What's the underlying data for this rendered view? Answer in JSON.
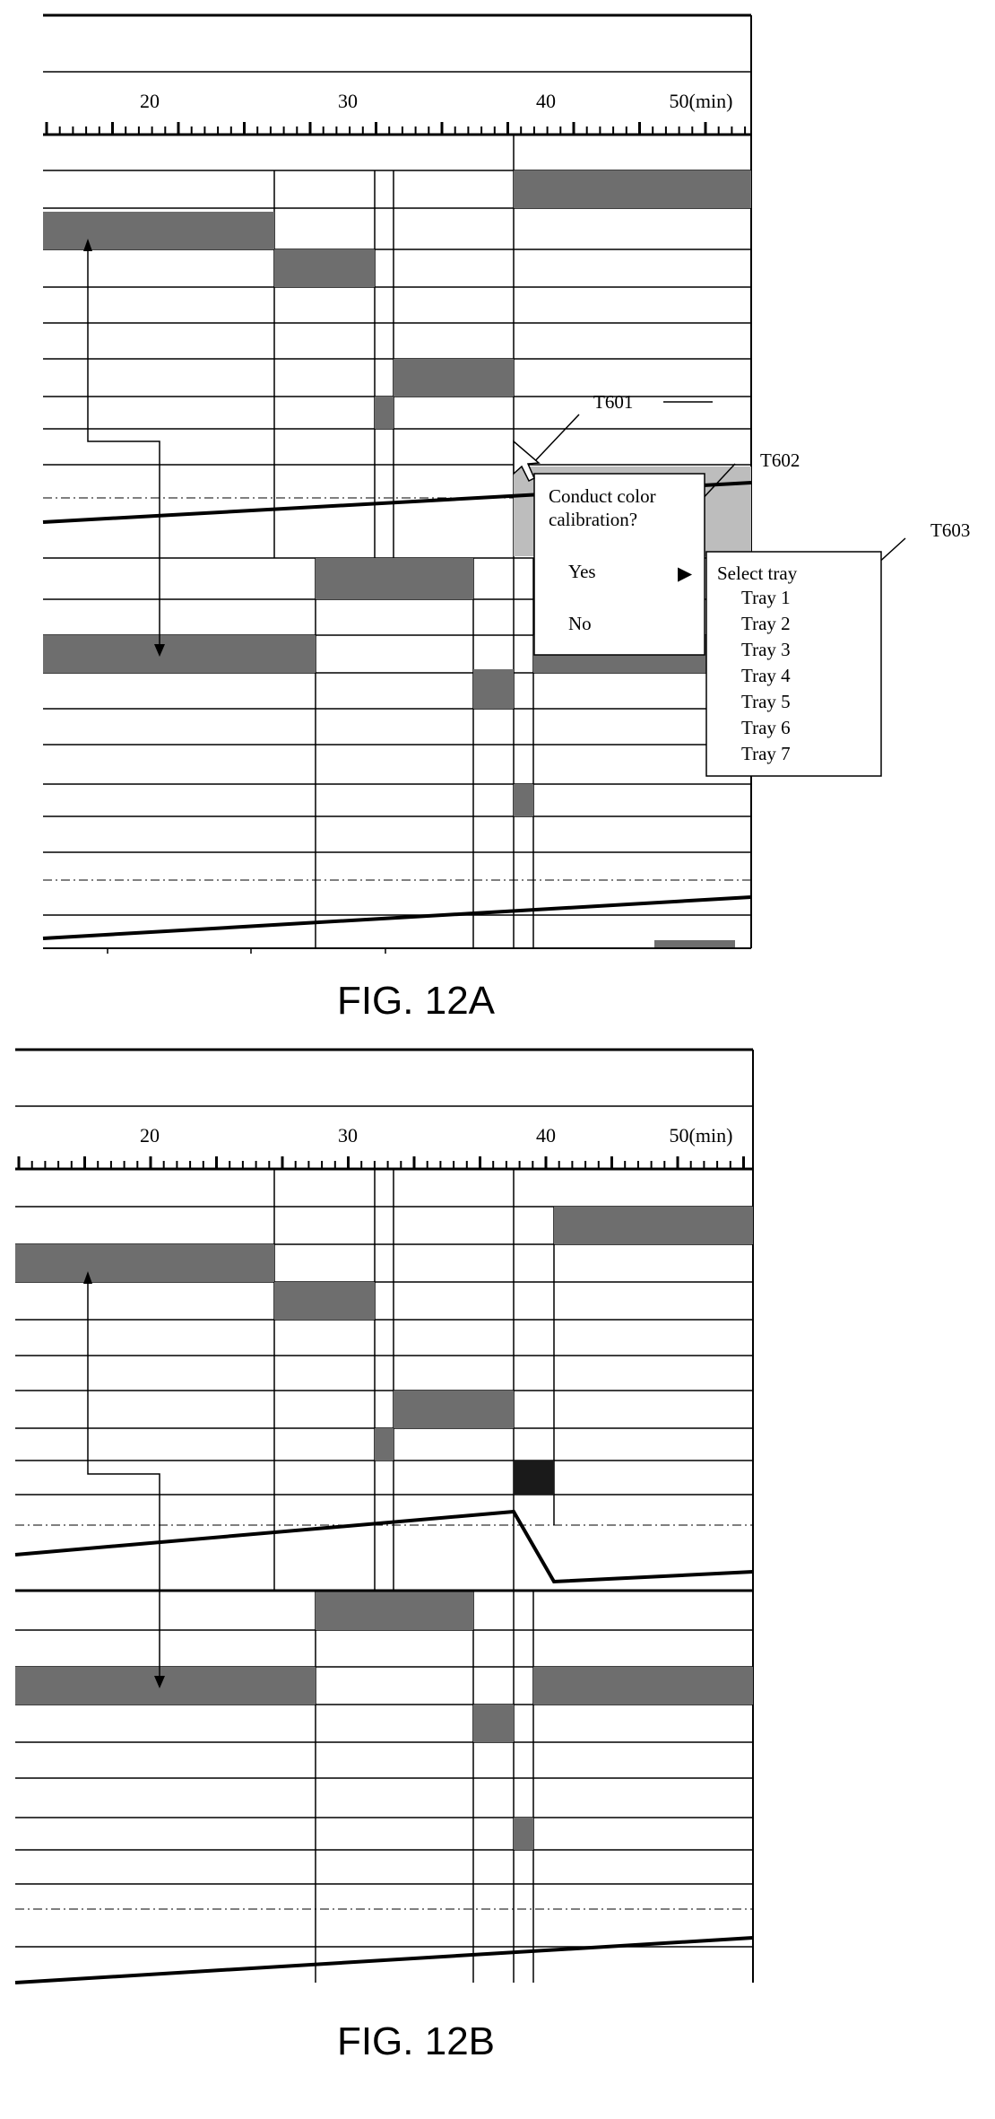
{
  "colors": {
    "bar": "#6e6e6e",
    "bar_dark": "#1a1a1a",
    "highlight": "#bdbdbd",
    "line": "#000000"
  },
  "fig_a": {
    "axis": {
      "ticks": [
        "20",
        "30",
        "40",
        "50(min)"
      ]
    },
    "callouts": {
      "t601": "T601",
      "t602": "T602",
      "t603": "T603"
    },
    "dialog": {
      "question_line1": "Conduct color",
      "question_line2": "calibration?",
      "yes_label": "Yes",
      "no_label": "No",
      "submenu_arrow": "▶"
    },
    "tray_menu": {
      "header": "Select tray",
      "items": [
        "Tray 1",
        "Tray 2",
        "Tray 3",
        "Tray 4",
        "Tray 5",
        "Tray 6",
        "Tray 7"
      ]
    },
    "caption": "FIG. 12A"
  },
  "fig_b": {
    "axis": {
      "ticks": [
        "20",
        "30",
        "40",
        "50(min)"
      ]
    },
    "caption": "FIG. 12B"
  }
}
